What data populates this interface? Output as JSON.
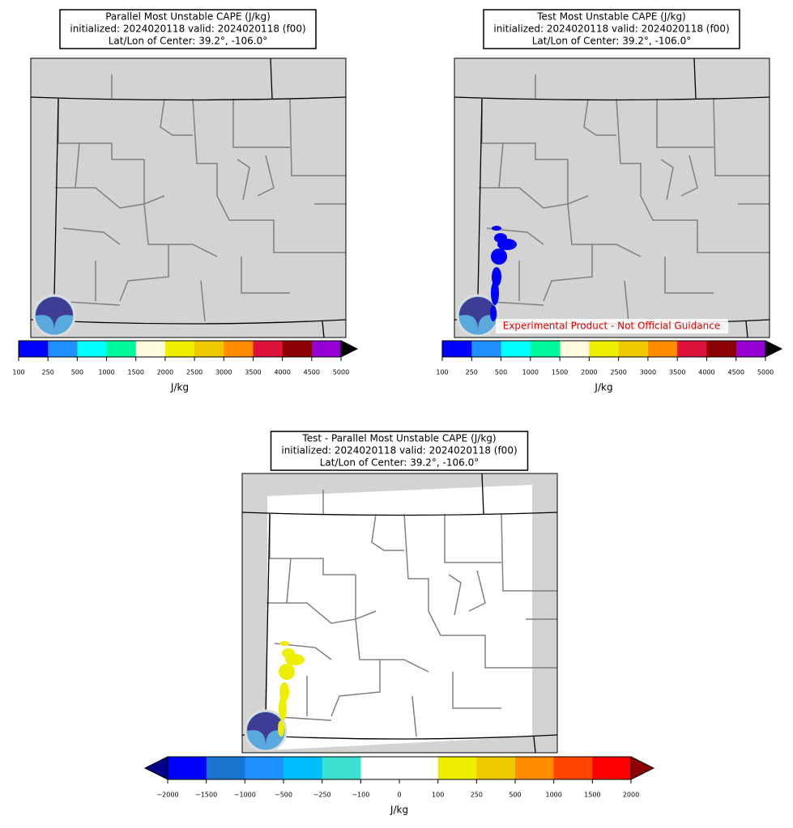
{
  "panels": [
    {
      "title": [
        "Parallel Most Unstable CAPE (J/kg)",
        "initialized: 2024020118 valid: 2024020118 (f00)",
        "Lat/Lon of Center: 39.2°, -106.0°"
      ],
      "colorbar": {
        "ticks": [
          "100",
          "250",
          "500",
          "1000",
          "1500",
          "2000",
          "2500",
          "3000",
          "3500",
          "4000",
          "4500",
          "5000"
        ],
        "colors": [
          "#0000ff",
          "#1e90ff",
          "#00ffff",
          "#00fa9a",
          "#fffadc",
          "#eeee00",
          "#eec900",
          "#ff8c00",
          "#dc143c",
          "#8b0000",
          "#9400d3"
        ],
        "extend_max": "#000000",
        "label": "J/kg"
      }
    },
    {
      "title": [
        "Test Most Unstable CAPE (J/kg)",
        "initialized: 2024020118 valid: 2024020118 (f00)",
        "Lat/Lon of Center: 39.2°, -106.0°"
      ],
      "annotation": "Experimental Product - Not Official Guidance",
      "colorbar": {
        "ticks": [
          "100",
          "250",
          "500",
          "1000",
          "1500",
          "2000",
          "2500",
          "3000",
          "3500",
          "4000",
          "4500",
          "5000"
        ],
        "colors": [
          "#0000ff",
          "#1e90ff",
          "#00ffff",
          "#00fa9a",
          "#fffadc",
          "#eeee00",
          "#eec900",
          "#ff8c00",
          "#dc143c",
          "#8b0000",
          "#9400d3"
        ],
        "extend_max": "#000000",
        "label": "J/kg"
      }
    },
    {
      "title": [
        "Test - Parallel Most Unstable CAPE (J/kg)",
        "initialized: 2024020118 valid: 2024020118 (f00)",
        "Lat/Lon of Center: 39.2°, -106.0°"
      ],
      "colorbar": {
        "ticks": [
          "−2000",
          "−1500",
          "−1000",
          "−500",
          "−250",
          "−100",
          "0",
          "100",
          "250",
          "500",
          "1000",
          "1500",
          "2000"
        ],
        "colors": [
          "#0000ff",
          "#1874cd",
          "#1e90ff",
          "#00bfff",
          "#40e0d0",
          "#ffffff",
          "#ffffff",
          "#eeee00",
          "#eec900",
          "#ff8c00",
          "#ff4500",
          "#ff0000"
        ],
        "extend_min": "#00008b",
        "extend_max": "#8b0000",
        "label": "J/kg"
      }
    }
  ]
}
